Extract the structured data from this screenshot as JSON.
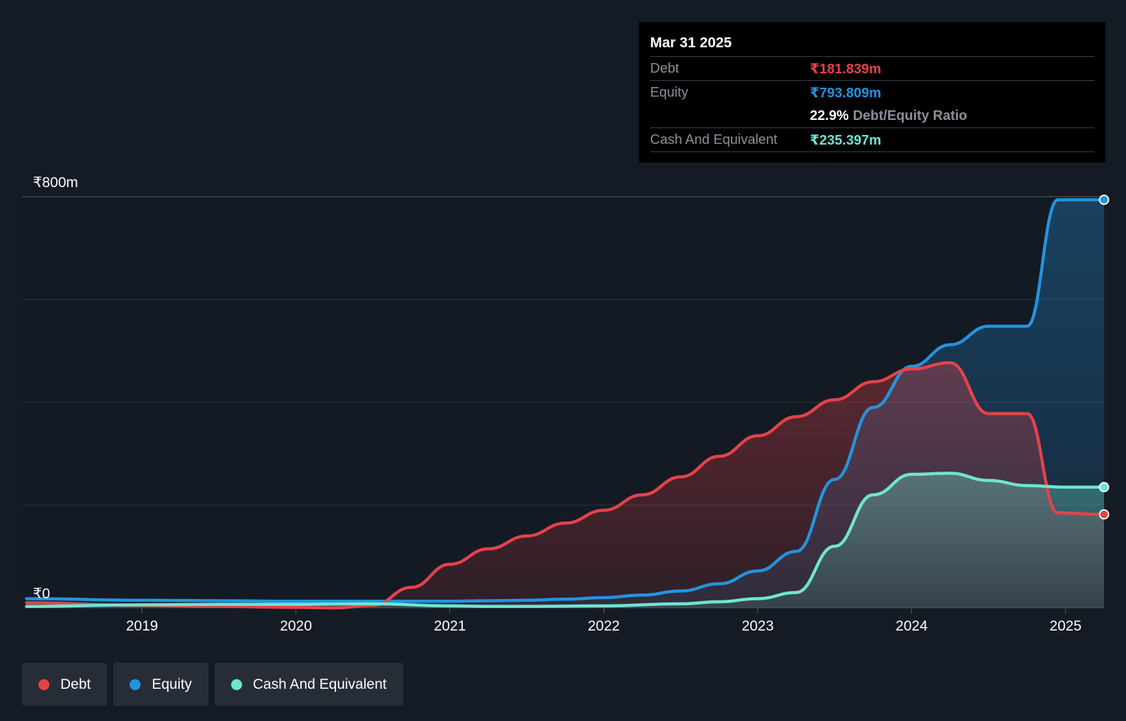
{
  "tooltip": {
    "date": "Mar 31 2025",
    "debt_label": "Debt",
    "debt_value": "₹181.839m",
    "equity_label": "Equity",
    "equity_value": "₹793.809m",
    "ratio_value": "22.9%",
    "ratio_label": "Debt/Equity Ratio",
    "cash_label": "Cash And Equivalent",
    "cash_value": "₹235.397m"
  },
  "legend": {
    "items": [
      {
        "label": "Debt",
        "color": "#e5424a"
      },
      {
        "label": "Equity",
        "color": "#2394df"
      },
      {
        "label": "Cash And Equivalent",
        "color": "#6ee6cf"
      }
    ]
  },
  "chart_data": {
    "type": "area",
    "title": "",
    "xlabel": "",
    "ylabel": "",
    "ylim": [
      0,
      800
    ],
    "xlim": [
      2018.22,
      2025.25
    ],
    "y_ticks": [
      {
        "value": 0,
        "label": "₹0"
      },
      {
        "value": 800,
        "label": "₹800m"
      }
    ],
    "y_gridlines": [
      0,
      200,
      400,
      600,
      800
    ],
    "x_ticks": [
      {
        "value": 2019,
        "label": "2019"
      },
      {
        "value": 2020,
        "label": "2020"
      },
      {
        "value": 2021,
        "label": "2021"
      },
      {
        "value": 2022,
        "label": "2022"
      },
      {
        "value": 2023,
        "label": "2023"
      },
      {
        "value": 2024,
        "label": "2024"
      },
      {
        "value": 2025,
        "label": "2025"
      }
    ],
    "series": [
      {
        "name": "Debt",
        "color": "#e5424a",
        "points": [
          [
            2018.25,
            10
          ],
          [
            2019.0,
            5
          ],
          [
            2019.5,
            3
          ],
          [
            2020.0,
            1
          ],
          [
            2020.25,
            0
          ],
          [
            2020.5,
            5
          ],
          [
            2020.75,
            40
          ],
          [
            2021.0,
            85
          ],
          [
            2021.25,
            115
          ],
          [
            2021.5,
            140
          ],
          [
            2021.75,
            165
          ],
          [
            2022.0,
            190
          ],
          [
            2022.25,
            220
          ],
          [
            2022.5,
            255
          ],
          [
            2022.75,
            295
          ],
          [
            2023.0,
            335
          ],
          [
            2023.25,
            372
          ],
          [
            2023.5,
            405
          ],
          [
            2023.75,
            440
          ],
          [
            2024.0,
            465
          ],
          [
            2024.25,
            477
          ],
          [
            2024.5,
            378
          ],
          [
            2024.75,
            378
          ],
          [
            2024.95,
            185
          ],
          [
            2025.25,
            182
          ]
        ]
      },
      {
        "name": "Equity",
        "color": "#2394df",
        "points": [
          [
            2018.25,
            18
          ],
          [
            2019.0,
            15
          ],
          [
            2019.5,
            14
          ],
          [
            2020.0,
            13
          ],
          [
            2020.5,
            13
          ],
          [
            2021.0,
            13
          ],
          [
            2021.25,
            14
          ],
          [
            2021.5,
            15
          ],
          [
            2021.75,
            17
          ],
          [
            2022.0,
            20
          ],
          [
            2022.25,
            25
          ],
          [
            2022.5,
            33
          ],
          [
            2022.75,
            47
          ],
          [
            2023.0,
            72
          ],
          [
            2023.25,
            110
          ],
          [
            2023.5,
            250
          ],
          [
            2023.75,
            390
          ],
          [
            2024.0,
            470
          ],
          [
            2024.25,
            512
          ],
          [
            2024.5,
            548
          ],
          [
            2024.75,
            548
          ],
          [
            2024.95,
            794
          ],
          [
            2025.25,
            794
          ]
        ]
      },
      {
        "name": "Cash And Equivalent",
        "color": "#6ee6cf",
        "points": [
          [
            2018.25,
            3
          ],
          [
            2019.0,
            6
          ],
          [
            2019.5,
            7
          ],
          [
            2020.0,
            7
          ],
          [
            2020.5,
            8
          ],
          [
            2021.0,
            4
          ],
          [
            2021.25,
            3
          ],
          [
            2021.5,
            3
          ],
          [
            2022.0,
            4
          ],
          [
            2022.5,
            8
          ],
          [
            2022.75,
            12
          ],
          [
            2023.0,
            18
          ],
          [
            2023.25,
            30
          ],
          [
            2023.5,
            120
          ],
          [
            2023.75,
            220
          ],
          [
            2024.0,
            260
          ],
          [
            2024.25,
            262
          ],
          [
            2024.5,
            248
          ],
          [
            2024.75,
            238
          ],
          [
            2025.0,
            235
          ],
          [
            2025.25,
            235
          ]
        ]
      }
    ],
    "grid": true,
    "legend_position": "bottom-left"
  }
}
